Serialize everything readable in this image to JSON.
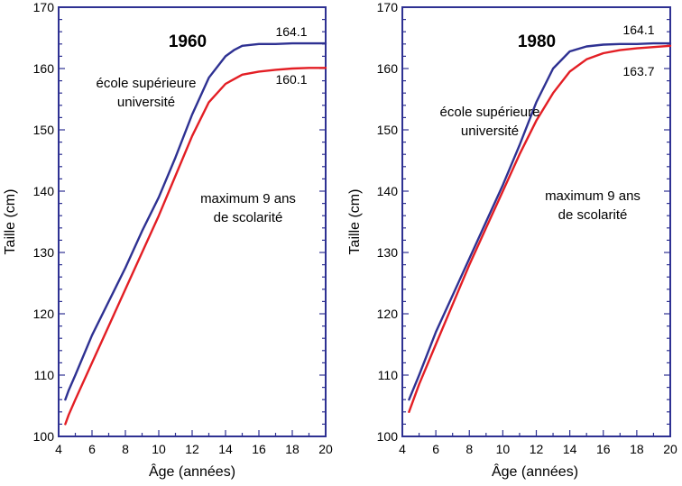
{
  "chart_data": [
    {
      "type": "line",
      "title": "1960",
      "xlabel": "Âge (années)",
      "ylabel": "Taille (cm)",
      "xlim": [
        4,
        20
      ],
      "ylim": [
        100,
        170
      ],
      "x_ticks": [
        4,
        6,
        8,
        10,
        12,
        14,
        16,
        18,
        20
      ],
      "y_ticks": [
        100,
        110,
        120,
        130,
        140,
        150,
        160,
        170
      ],
      "series": [
        {
          "name": "",
          "color": "#2e3192",
          "x": [
            4.4,
            4.6,
            5,
            6,
            7,
            8,
            9,
            10,
            11,
            12,
            13,
            14,
            14.5,
            15,
            16,
            17,
            18,
            19,
            20
          ],
          "y": [
            106,
            107.5,
            110,
            116.5,
            122,
            127.5,
            133.5,
            139,
            145.5,
            152.5,
            158.5,
            162,
            163,
            163.7,
            164,
            164,
            164.1,
            164.1,
            164.1
          ],
          "end_label": "164.1"
        },
        {
          "name": "",
          "color": "#e31e24",
          "x": [
            4.4,
            4.6,
            5,
            6,
            7,
            8,
            9,
            10,
            11,
            12,
            13,
            14,
            15,
            16,
            17,
            18,
            19,
            20
          ],
          "y": [
            102,
            103.5,
            106,
            112,
            118,
            124,
            130,
            136,
            142.5,
            149,
            154.5,
            157.5,
            159,
            159.5,
            159.8,
            160,
            160.1,
            160.1
          ],
          "end_label": "160.1"
        }
      ],
      "annotations": [
        "école supérieure",
        "université",
        "maximum 9 ans",
        "de scolarité"
      ]
    },
    {
      "type": "line",
      "title": "1980",
      "xlabel": "Âge (années)",
      "ylabel": "Taille (cm)",
      "xlim": [
        4,
        20
      ],
      "ylim": [
        100,
        170
      ],
      "x_ticks": [
        4,
        6,
        8,
        10,
        12,
        14,
        16,
        18,
        20
      ],
      "y_ticks": [
        100,
        110,
        120,
        130,
        140,
        150,
        160,
        170
      ],
      "series": [
        {
          "name": "",
          "color": "#2e3192",
          "x": [
            4.4,
            5,
            6,
            7,
            8,
            9,
            10,
            11,
            12,
            13,
            14,
            15,
            16,
            17,
            18,
            19,
            20
          ],
          "y": [
            106,
            110,
            117,
            123,
            129,
            135,
            141,
            147.5,
            154.5,
            160,
            162.8,
            163.6,
            163.9,
            164,
            164,
            164.1,
            164.1
          ],
          "end_label": "164.1"
        },
        {
          "name": "",
          "color": "#e31e24",
          "x": [
            4.4,
            5,
            6,
            7,
            8,
            9,
            10,
            11,
            12,
            13,
            14,
            15,
            16,
            17,
            18,
            19,
            20
          ],
          "y": [
            104,
            108.5,
            115,
            121.5,
            128,
            134,
            140,
            146,
            151.5,
            156,
            159.5,
            161.5,
            162.5,
            163,
            163.3,
            163.5,
            163.7
          ],
          "end_label": "163.7"
        }
      ],
      "annotations": [
        "école supérieure",
        "université",
        "maximum 9 ans",
        "de scolarité"
      ]
    }
  ]
}
